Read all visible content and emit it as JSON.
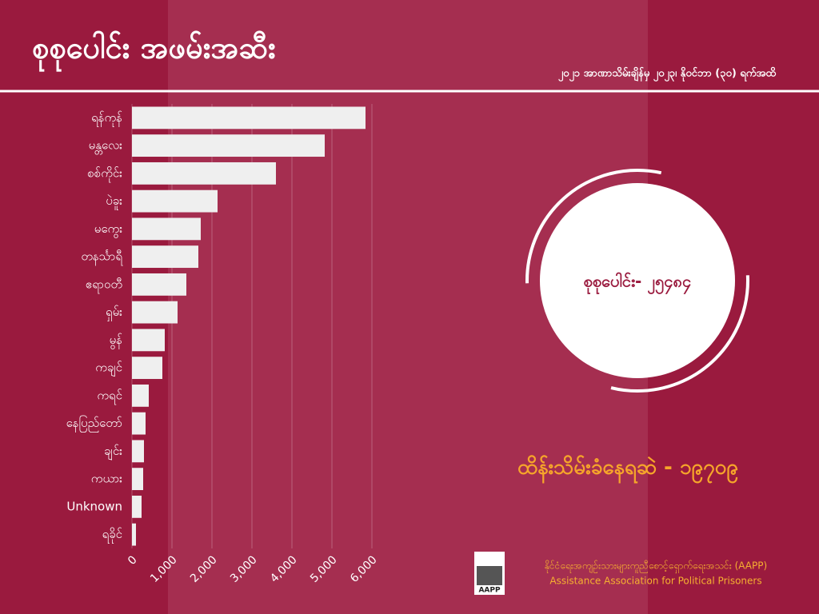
{
  "chart_data": {
    "type": "bar",
    "orientation": "horizontal",
    "title": "စုစုပေါင်း အဖမ်းအဆီး",
    "subtitle": "၂၀၂၁ အာဏာသိမ်းချိန်မှ ၂၀၂၃၊ နိုဝင်ဘာ (၃၀) ရက်အထိ",
    "categories": [
      "ရန်ကုန်",
      "မန္တလေး",
      "စစ်ကိုင်း",
      "ပဲခူး",
      "မကွေး",
      "တနင်္သာရီ",
      "ဧရာဝတီ",
      "ရှမ်း",
      "မွန်",
      "ကချင်",
      "ကရင်",
      "နေပြည်တော်",
      "ချင်း",
      "ကယား",
      "Unknown",
      "ရခိုင်"
    ],
    "values": [
      5840,
      4820,
      3600,
      2140,
      1720,
      1660,
      1360,
      1140,
      820,
      760,
      420,
      340,
      300,
      280,
      240,
      100
    ],
    "color": "#efefef",
    "xlim": [
      0,
      6000
    ],
    "xticks": [
      0,
      {
        "value": 1000,
        "label": "1,000"
      },
      {
        "value": 2000,
        "label": "2,000"
      },
      {
        "value": 3000,
        "label": "3,000"
      },
      {
        "value": 4000,
        "label": "4,000"
      },
      {
        "value": 5000,
        "label": "5,000"
      },
      {
        "value": 6000,
        "label": "6,000"
      }
    ],
    "grid": true
  },
  "summary": {
    "total": "စုစုပေါင်း- ၂၅၄၈၄",
    "detained": "ထိန်းသိမ်းခံနေရဆဲ - ၁၉၇၀၉"
  },
  "footer": {
    "logo": "AAPP",
    "org_mm": "နိုင်ငံရေးအကျဉ်းသားများကူညီစောင့်ရှောက်ရေးအသင်း (AAPP)",
    "org_en": "Assistance Association for Political Prisoners"
  }
}
